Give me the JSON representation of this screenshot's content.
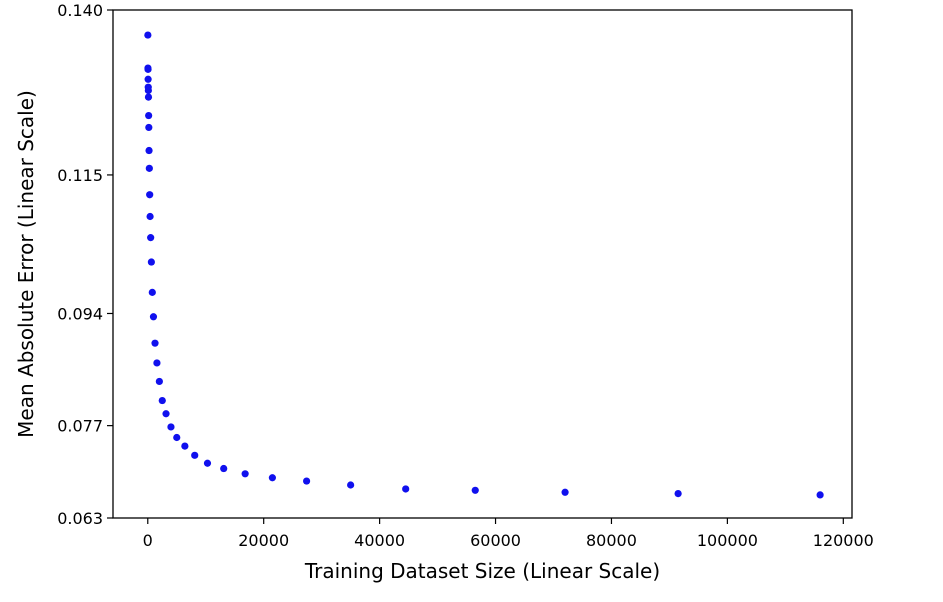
{
  "chart_data": {
    "type": "scatter",
    "xlabel": "Training Dataset Size (Linear Scale)",
    "ylabel": "Mean Absolute Error (Linear Scale)",
    "xlim": [
      -6000,
      121500
    ],
    "ylim": [
      0.063,
      0.14
    ],
    "x_ticks": [
      0,
      20000,
      40000,
      60000,
      80000,
      100000,
      120000
    ],
    "x_tick_labels": [
      "0",
      "20000",
      "40000",
      "60000",
      "80000",
      "100000",
      "120000"
    ],
    "y_ticks": [
      0.063,
      0.077,
      0.094,
      0.115,
      0.14
    ],
    "y_tick_labels": [
      "0.063",
      "0.077",
      "0.094",
      "0.115",
      "0.140"
    ],
    "grid": false,
    "marker_color": "#1010ee",
    "points": [
      {
        "x": 15,
        "y": 0.1362
      },
      {
        "x": 30,
        "y": 0.1312
      },
      {
        "x": 45,
        "y": 0.131
      },
      {
        "x": 60,
        "y": 0.1295
      },
      {
        "x": 80,
        "y": 0.1283
      },
      {
        "x": 100,
        "y": 0.1278
      },
      {
        "x": 120,
        "y": 0.1268
      },
      {
        "x": 150,
        "y": 0.124
      },
      {
        "x": 180,
        "y": 0.1222
      },
      {
        "x": 220,
        "y": 0.1187
      },
      {
        "x": 270,
        "y": 0.116
      },
      {
        "x": 330,
        "y": 0.112
      },
      {
        "x": 400,
        "y": 0.1087
      },
      {
        "x": 500,
        "y": 0.1055
      },
      {
        "x": 620,
        "y": 0.1018
      },
      {
        "x": 780,
        "y": 0.0972
      },
      {
        "x": 980,
        "y": 0.0935
      },
      {
        "x": 1250,
        "y": 0.0895
      },
      {
        "x": 1580,
        "y": 0.0865
      },
      {
        "x": 2000,
        "y": 0.0837
      },
      {
        "x": 2500,
        "y": 0.0808
      },
      {
        "x": 3150,
        "y": 0.0788
      },
      {
        "x": 4000,
        "y": 0.0768
      },
      {
        "x": 5000,
        "y": 0.0752
      },
      {
        "x": 6400,
        "y": 0.0739
      },
      {
        "x": 8100,
        "y": 0.0725
      },
      {
        "x": 10300,
        "y": 0.0713
      },
      {
        "x": 13100,
        "y": 0.0705
      },
      {
        "x": 16800,
        "y": 0.0697
      },
      {
        "x": 21500,
        "y": 0.0691
      },
      {
        "x": 27400,
        "y": 0.0686
      },
      {
        "x": 35000,
        "y": 0.068
      },
      {
        "x": 44500,
        "y": 0.0674
      },
      {
        "x": 56500,
        "y": 0.0672
      },
      {
        "x": 72000,
        "y": 0.0669
      },
      {
        "x": 91500,
        "y": 0.0667
      },
      {
        "x": 116000,
        "y": 0.0665
      }
    ]
  }
}
